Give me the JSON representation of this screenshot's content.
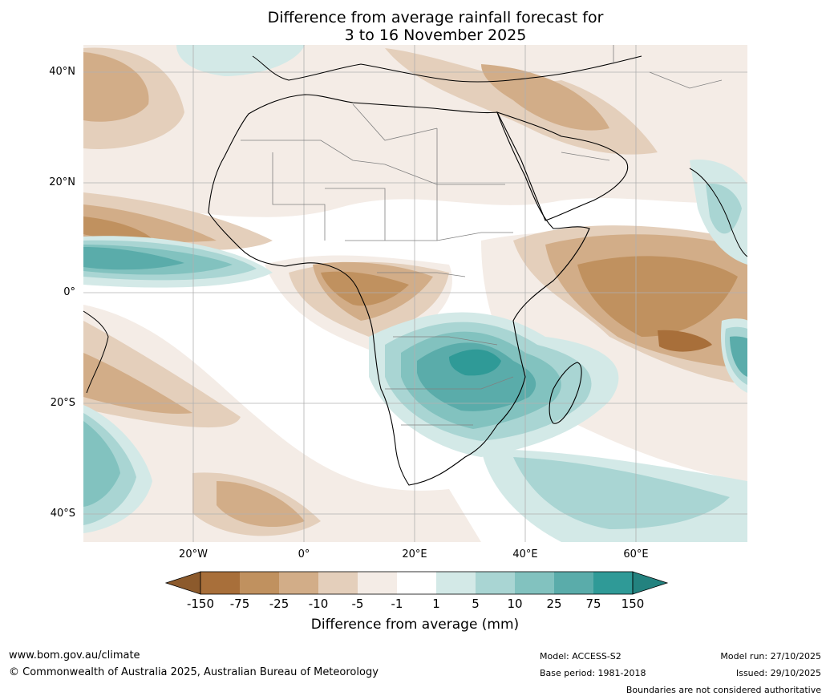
{
  "title_line1": "Difference from average rainfall forecast for",
  "title_line2": "3 to 16 November 2025",
  "lat_labels": [
    "40°N",
    "20°N",
    "0°",
    "20°S",
    "40°S"
  ],
  "lon_labels": [
    "20°W",
    "0°",
    "20°E",
    "40°E",
    "60°E"
  ],
  "colorbar": {
    "ticks": [
      "-150",
      "-75",
      "-25",
      "-10",
      "-5",
      "-1",
      "1",
      "5",
      "10",
      "25",
      "75",
      "150"
    ],
    "colors": [
      "#a86f3a",
      "#c0915f",
      "#d2ad88",
      "#e4cfbb",
      "#f4ece6",
      "#ffffff",
      "#d3e9e7",
      "#a9d5d3",
      "#82c2bf",
      "#5aacaa",
      "#2f9a97"
    ],
    "under_color": "#8c5a2c",
    "over_color": "#23827f",
    "label": "Difference from average (mm)"
  },
  "footer": {
    "website": "www.bom.gov.au/climate",
    "copyright": "© Commonwealth of Australia 2025, Australian Bureau of Meteorology",
    "model": "Model: ACCESS-S2",
    "base_period": "Base period: 1981-2018",
    "model_run": "Model run: 27/10/2025",
    "issued": "Issued: 29/10/2025",
    "disclaimer": "Boundaries are not considered authoritative"
  },
  "colors": {
    "coast": "#000000",
    "borders": "#808080",
    "grid": "#b0b0b0"
  }
}
